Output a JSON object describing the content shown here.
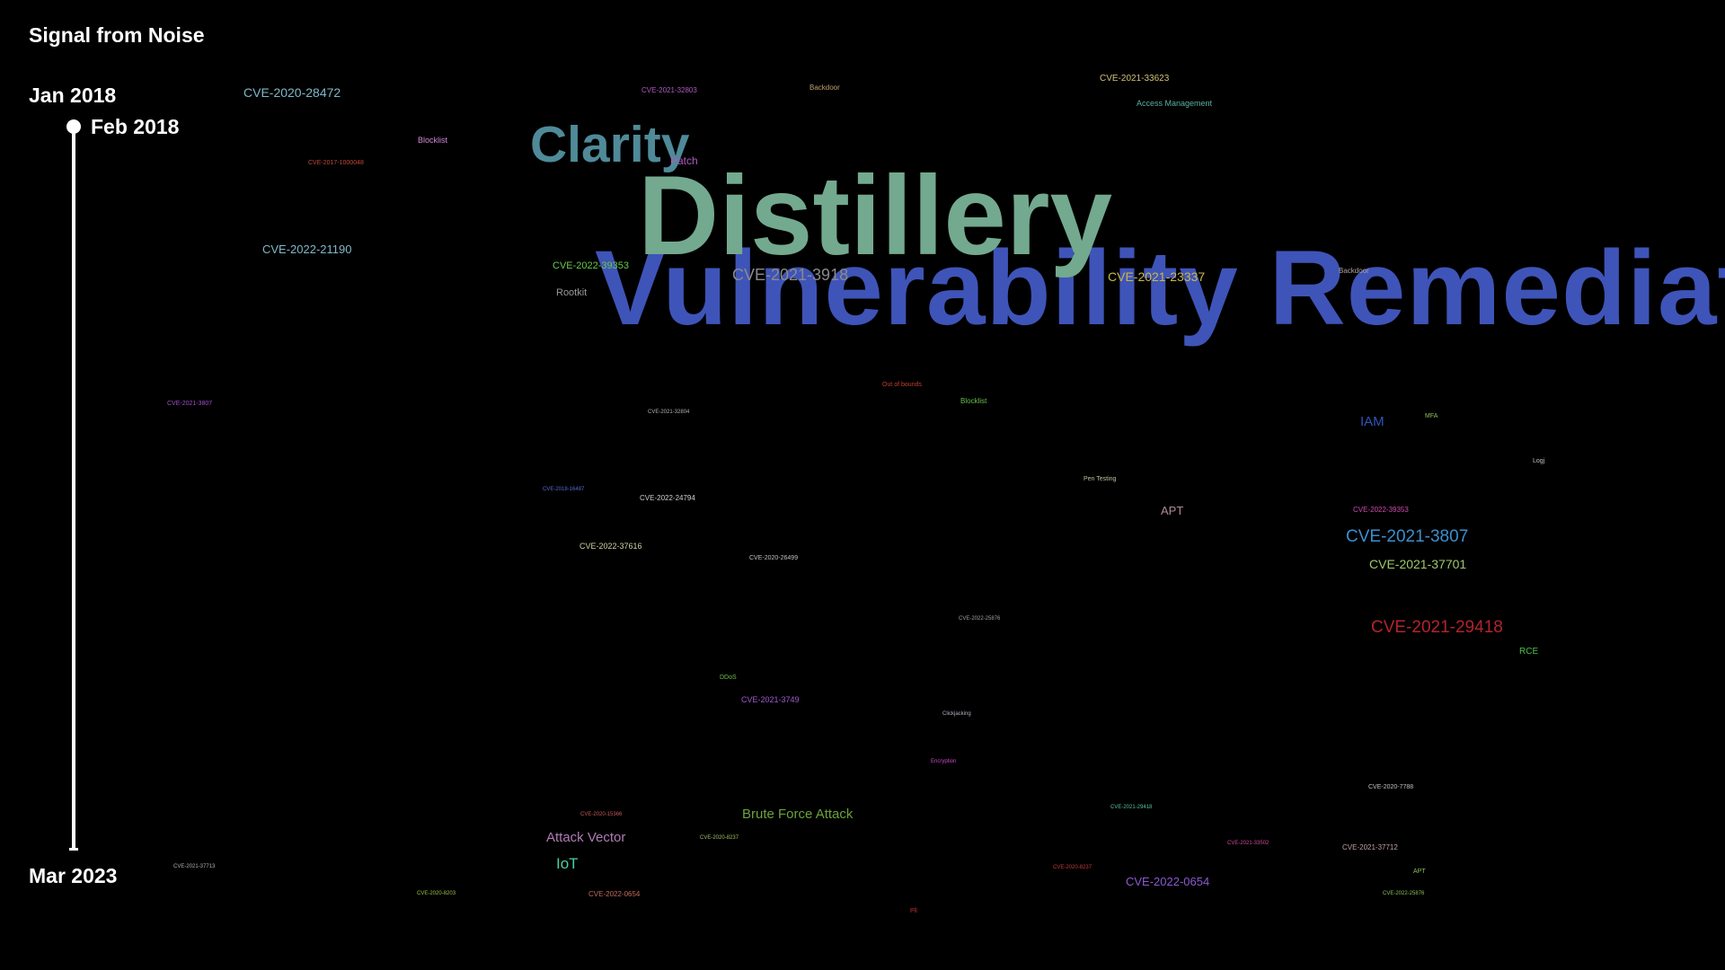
{
  "title": "Signal from Noise",
  "timeline": {
    "start_label": "Jan 2018",
    "current_label": "Feb 2018",
    "end_label": "Mar 2023",
    "progress": 0.0
  },
  "words": [
    {
      "text": "Vulnerability Remediation",
      "color": "#3f54b8"
    },
    {
      "text": "Distillery",
      "color": "#73a98f"
    },
    {
      "text": "Clarity",
      "color": "#4f8a98"
    },
    {
      "text": "CVE-2021-3807",
      "color": "#3a8fd0"
    },
    {
      "text": "CVE-2021-29418",
      "color": "#b2242b"
    },
    {
      "text": "CVE-2021-3918",
      "color": "#8a8a8a"
    },
    {
      "text": "CVE-2020-28472",
      "color": "#7fb7c9"
    },
    {
      "text": "CVE-2022-21190",
      "color": "#7fb7c9"
    },
    {
      "text": "CVE-2021-23337",
      "color": "#c9b84a"
    },
    {
      "text": "CVE-2021-37701",
      "color": "#9fc96a"
    },
    {
      "text": "Brute Force Attack",
      "color": "#6aa33a"
    },
    {
      "text": "Attack Vector",
      "color": "#b07bb5"
    },
    {
      "text": "IoT",
      "color": "#4ad0a8"
    },
    {
      "text": "IAM",
      "color": "#2f55b8"
    },
    {
      "text": "APT",
      "color": "#b08a9a"
    },
    {
      "text": "CVE-2022-0654",
      "color": "#8a5ad0"
    },
    {
      "text": "CVE-2022-39353",
      "color": "#6ac94a"
    },
    {
      "text": "Rootkit",
      "color": "#9a9a9a"
    },
    {
      "text": "CVE-2021-33623",
      "color": "#d0c07a"
    },
    {
      "text": "Access Management",
      "color": "#5fb0a0"
    },
    {
      "text": "CVE-2021-32803",
      "color": "#b05ac0"
    },
    {
      "text": "Backdoor",
      "color": "#c0a070"
    },
    {
      "text": "Blocklist",
      "color": "#d088d8"
    },
    {
      "text": "CVE-2017-1000048",
      "color": "#c04a3a"
    },
    {
      "text": "Patch",
      "color": "#b05ac0"
    },
    {
      "text": "CVE-2022-24794",
      "color": "#d0d0d0"
    },
    {
      "text": "CVE-2022-37616",
      "color": "#d0d0a0"
    },
    {
      "text": "CVE-2020-26499",
      "color": "#c0c0c0"
    },
    {
      "text": "CVE-2021-3749",
      "color": "#a05ad0"
    },
    {
      "text": "CVE-2021-3807",
      "color": "#a050c8"
    },
    {
      "text": "CVE-2022-39353",
      "color": "#d04ab0"
    },
    {
      "text": "RCE",
      "color": "#4ac04a"
    },
    {
      "text": "MFA",
      "color": "#8ac05a"
    },
    {
      "text": "Blocklist",
      "color": "#6ac04a"
    },
    {
      "text": "Out of bounds",
      "color": "#c04030"
    },
    {
      "text": "Pen Testing",
      "color": "#c0c0a0"
    },
    {
      "text": "CVE-2021-32804",
      "color": "#b0b0b0"
    },
    {
      "text": "CVE-2018-16487",
      "color": "#5a6ad0"
    },
    {
      "text": "CVE-2020-7788",
      "color": "#c0c0c0"
    },
    {
      "text": "CVE-2021-37712",
      "color": "#c0a0a0"
    },
    {
      "text": "CVE-2021-33502",
      "color": "#d04a9a"
    },
    {
      "text": "CVE-2020-8237",
      "color": "#c03a3a"
    },
    {
      "text": "CVE-2022-25876",
      "color": "#8ac05a"
    },
    {
      "text": "CVE-2020-8203",
      "color": "#a0c040"
    },
    {
      "text": "CVE-2022-0654",
      "color": "#c06a5a"
    },
    {
      "text": "CVE-2021-37713",
      "color": "#b0b0b0"
    },
    {
      "text": "CVE-2020-15366",
      "color": "#c05a5a"
    },
    {
      "text": "CVE-2020-8237",
      "color": "#a0c060"
    },
    {
      "text": "CVE-2021-29418",
      "color": "#5ac0a0"
    },
    {
      "text": "CVE-2022-25876",
      "color": "#a0a0a0"
    },
    {
      "text": "APT",
      "color": "#8ac05a"
    },
    {
      "text": "DDoS",
      "color": "#6ac04a"
    },
    {
      "text": "Clickjacking",
      "color": "#b0b0c0"
    },
    {
      "text": "Encryption",
      "color": "#d04ad0"
    },
    {
      "text": "Pll",
      "color": "#c03030"
    },
    {
      "text": "Backdoor",
      "color": "#b0a0a0"
    },
    {
      "text": "Logj",
      "color": "#c0c0c0"
    }
  ]
}
